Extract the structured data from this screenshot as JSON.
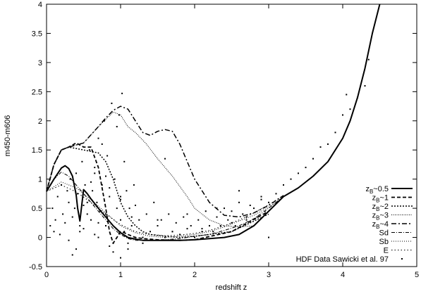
{
  "chart_data": {
    "type": "line",
    "title": "",
    "xlabel": "redshift z",
    "ylabel": "m450-m606",
    "xlim": [
      0,
      5
    ],
    "ylim": [
      -0.5,
      4
    ],
    "xticks": [
      "0",
      "1",
      "2",
      "3",
      "4",
      "5"
    ],
    "yticks": [
      "-0.5",
      "0",
      "0.5",
      "1",
      "1.5",
      "2",
      "2.5",
      "3",
      "3.5",
      "4"
    ],
    "grid": false,
    "legend_position": "bottom-right",
    "series": [
      {
        "name": "zB~0.5",
        "legend": {
          "main": "z",
          "sub": "B",
          "tail": "~0.5"
        },
        "style": "solid-thick",
        "x": [
          0,
          0.1,
          0.2,
          0.25,
          0.3,
          0.35,
          0.4,
          0.42,
          0.45,
          0.5,
          0.55,
          0.6,
          0.7,
          0.8,
          0.9,
          1.0,
          1.1,
          1.2,
          1.3,
          1.4,
          1.6,
          1.8,
          2.0,
          2.2,
          2.4,
          2.6,
          2.8,
          3.0,
          3.2,
          3.4,
          3.6,
          3.8,
          4.0,
          4.1,
          4.2,
          4.3,
          4.4,
          4.5
        ],
        "y": [
          0.79,
          1.0,
          1.19,
          1.23,
          1.18,
          1.05,
          0.73,
          0.5,
          0.28,
          0.82,
          0.75,
          0.66,
          0.5,
          0.35,
          0.2,
          0.08,
          0.0,
          -0.03,
          -0.05,
          -0.05,
          -0.05,
          -0.05,
          -0.04,
          -0.02,
          0.0,
          0.05,
          0.2,
          0.45,
          0.7,
          0.85,
          1.05,
          1.3,
          1.7,
          2.0,
          2.4,
          2.9,
          3.5,
          4.0
        ]
      },
      {
        "name": "zB~1",
        "legend": {
          "main": "z",
          "sub": "B",
          "tail": "~1"
        },
        "style": "dashed-thick",
        "x": [
          0,
          0.1,
          0.2,
          0.3,
          0.4,
          0.5,
          0.6,
          0.7,
          0.8,
          0.85,
          0.9,
          0.95,
          1.0,
          1.05,
          1.1,
          1.2,
          1.3,
          1.5,
          1.8,
          2.0,
          2.5,
          3.0
        ],
        "y": [
          0.79,
          1.25,
          1.5,
          1.55,
          1.62,
          1.55,
          1.55,
          1.2,
          0.5,
          0.1,
          -0.1,
          0.0,
          0.1,
          0.08,
          0.05,
          0.0,
          -0.02,
          -0.04,
          -0.05,
          -0.04,
          0.1,
          0.45
        ]
      },
      {
        "name": "zB~2",
        "legend": {
          "main": "z",
          "sub": "B",
          "tail": "~2"
        },
        "style": "dotted",
        "x": [
          0,
          0.1,
          0.2,
          0.3,
          0.5,
          0.7,
          0.8,
          0.9,
          1.0,
          1.1,
          1.2,
          1.3,
          1.4,
          1.6,
          1.8,
          2.0,
          2.5,
          3.0
        ],
        "y": [
          0.79,
          1.25,
          1.5,
          1.55,
          1.5,
          1.45,
          1.3,
          1.0,
          0.6,
          0.35,
          0.2,
          0.1,
          0.05,
          0.02,
          0.0,
          0.02,
          0.1,
          0.4
        ]
      },
      {
        "name": "zB~3",
        "legend": {
          "main": "z",
          "sub": "B",
          "tail": "~3"
        },
        "style": "fine-dotted",
        "x": [
          0,
          0.1,
          0.2,
          0.3,
          0.5,
          0.7,
          0.9,
          1.0,
          1.1,
          1.2,
          1.35,
          1.5,
          1.7,
          1.9,
          2.0,
          2.2,
          2.4,
          2.6,
          2.8,
          3.0,
          3.2
        ],
        "y": [
          0.79,
          1.25,
          1.5,
          1.55,
          1.62,
          1.9,
          2.15,
          2.1,
          1.9,
          1.8,
          1.6,
          1.35,
          1.05,
          0.7,
          0.5,
          0.3,
          0.2,
          0.18,
          0.2,
          0.45,
          0.7
        ]
      },
      {
        "name": "zB~4",
        "legend": {
          "main": "z",
          "sub": "B",
          "tail": "~4"
        },
        "style": "dash-dot",
        "x": [
          0,
          0.1,
          0.2,
          0.3,
          0.5,
          0.7,
          0.8,
          0.9,
          1.0,
          1.1,
          1.2,
          1.3,
          1.4,
          1.5,
          1.6,
          1.7,
          1.8,
          1.9,
          2.0,
          2.2,
          2.4,
          2.6,
          2.8,
          3.0,
          3.2
        ],
        "y": [
          0.79,
          1.25,
          1.5,
          1.55,
          1.62,
          1.9,
          2.05,
          2.18,
          2.25,
          2.2,
          2.0,
          1.8,
          1.75,
          1.82,
          1.85,
          1.82,
          1.6,
          1.3,
          1.0,
          0.6,
          0.38,
          0.35,
          0.42,
          0.55,
          0.72
        ]
      },
      {
        "name": "Sd",
        "style": "dash-dot-thin",
        "x": [
          0,
          0.1,
          0.2,
          0.3,
          0.4,
          0.5,
          0.6,
          0.7,
          0.8,
          0.9,
          1.0,
          1.1,
          1.2,
          1.4,
          1.6,
          1.8,
          2.0,
          2.2,
          2.4,
          2.6,
          2.8,
          3.0,
          3.2
        ],
        "y": [
          0.79,
          1.0,
          1.12,
          1.05,
          0.9,
          0.75,
          0.6,
          0.45,
          0.3,
          0.15,
          0.05,
          -0.02,
          -0.05,
          -0.05,
          -0.04,
          -0.02,
          0.02,
          0.05,
          0.12,
          0.2,
          0.32,
          0.5,
          0.7
        ]
      },
      {
        "name": "Sb",
        "style": "dotted-thin",
        "x": [
          0,
          0.2,
          0.4,
          0.6,
          0.8,
          1.0,
          1.2,
          1.4,
          1.6,
          1.8,
          2.0,
          2.2,
          2.4,
          2.6,
          2.8,
          3.0,
          3.2
        ],
        "y": [
          0.79,
          0.95,
          0.85,
          0.65,
          0.42,
          0.2,
          0.08,
          0.02,
          0.0,
          0.02,
          0.05,
          0.1,
          0.18,
          0.28,
          0.38,
          0.52,
          0.7
        ]
      },
      {
        "name": "E",
        "style": "dotted-sparse",
        "x": [
          0,
          0.2,
          0.4,
          0.6,
          0.8,
          1.0,
          1.2,
          1.4,
          1.6,
          1.8,
          2.0,
          2.2,
          2.4,
          2.6,
          2.8,
          3.0,
          3.2
        ],
        "y": [
          0.79,
          0.9,
          0.78,
          0.6,
          0.4,
          0.22,
          0.1,
          0.05,
          0.03,
          0.04,
          0.07,
          0.12,
          0.2,
          0.3,
          0.42,
          0.56,
          0.72
        ]
      },
      {
        "name": "HDF Data Sawicki et al. 97",
        "style": "points",
        "x": [
          0.05,
          0.08,
          0.1,
          0.12,
          0.15,
          0.18,
          0.2,
          0.22,
          0.25,
          0.28,
          0.3,
          0.32,
          0.35,
          0.38,
          0.4,
          0.42,
          0.45,
          0.48,
          0.5,
          0.52,
          0.55,
          0.58,
          0.6,
          0.62,
          0.65,
          0.68,
          0.7,
          0.72,
          0.75,
          0.78,
          0.8,
          0.82,
          0.85,
          0.88,
          0.9,
          0.92,
          0.95,
          0.98,
          1.0,
          1.02,
          1.05,
          1.08,
          1.1,
          1.12,
          1.15,
          1.18,
          1.2,
          1.25,
          1.3,
          1.35,
          1.4,
          1.45,
          1.5,
          1.55,
          1.6,
          1.65,
          1.7,
          1.75,
          1.8,
          1.85,
          1.9,
          1.95,
          2.0,
          2.05,
          2.1,
          2.15,
          2.2,
          2.25,
          2.3,
          2.35,
          2.4,
          2.45,
          2.5,
          2.55,
          2.6,
          2.65,
          2.7,
          2.75,
          2.8,
          2.85,
          2.9,
          2.95,
          3.0,
          3.1,
          3.2,
          3.3,
          3.4,
          3.5,
          3.6,
          3.7,
          3.8,
          3.9,
          4.0,
          4.1,
          4.2,
          4.3,
          4.35,
          0.3,
          0.45,
          0.55,
          0.65,
          0.75,
          0.85,
          0.95,
          1.05,
          0.35,
          0.6,
          0.7,
          0.8,
          0.9,
          1.0,
          1.1,
          1.2,
          0.5,
          0.65,
          0.7,
          0.85,
          1.0,
          1.15,
          1.3,
          1.5,
          1.7,
          1.9,
          2.1,
          2.3,
          2.5,
          2.7,
          2.9,
          0.4,
          0.8,
          1.0,
          1.6,
          2.2,
          2.6,
          3.0,
          4.05
        ],
        "y": [
          0.2,
          0.5,
          0.1,
          0.3,
          0.7,
          0.05,
          0.9,
          0.4,
          0.25,
          0.8,
          0.6,
          1.0,
          0.35,
          0.5,
          1.1,
          0.75,
          0.2,
          1.3,
          0.55,
          0.9,
          0.4,
          1.5,
          0.3,
          0.8,
          1.2,
          0.6,
          1.7,
          0.45,
          0.9,
          2.0,
          0.2,
          1.4,
          0.7,
          2.3,
          -0.1,
          1.0,
          0.5,
          2.1,
          0.3,
          2.47,
          0.1,
          0.8,
          -0.2,
          0.5,
          0.2,
          0.9,
          0.0,
          0.3,
          -0.1,
          0.4,
          0.1,
          0.6,
          0.2,
          0.3,
          0.0,
          0.4,
          0.1,
          0.25,
          0.05,
          0.35,
          0.15,
          0.2,
          0.0,
          0.3,
          0.1,
          0.45,
          0.2,
          0.1,
          0.35,
          0.2,
          0.5,
          0.3,
          0.45,
          0.2,
          0.6,
          0.4,
          0.3,
          0.55,
          0.5,
          0.35,
          0.7,
          0.45,
          0.6,
          0.75,
          0.9,
          1.0,
          1.1,
          1.2,
          1.35,
          1.55,
          1.6,
          1.8,
          2.1,
          2.2,
          2.4,
          2.6,
          3.05,
          -0.05,
          0.1,
          0.6,
          1.1,
          1.6,
          0.85,
          1.9,
          1.3,
          -0.3,
          0.95,
          0.0,
          0.4,
          -0.25,
          0.7,
          -0.1,
          0.55,
          0.15,
          0.05,
          0.25,
          -0.15,
          -0.35,
          0.35,
          0.0,
          0.3,
          0.1,
          0.4,
          0.15,
          0.5,
          0.25,
          0.35,
          0.65,
          -0.2,
          1.05,
          0.65,
          1.35,
          0.2,
          0.8,
          0.0,
          2.45
        ]
      }
    ]
  }
}
